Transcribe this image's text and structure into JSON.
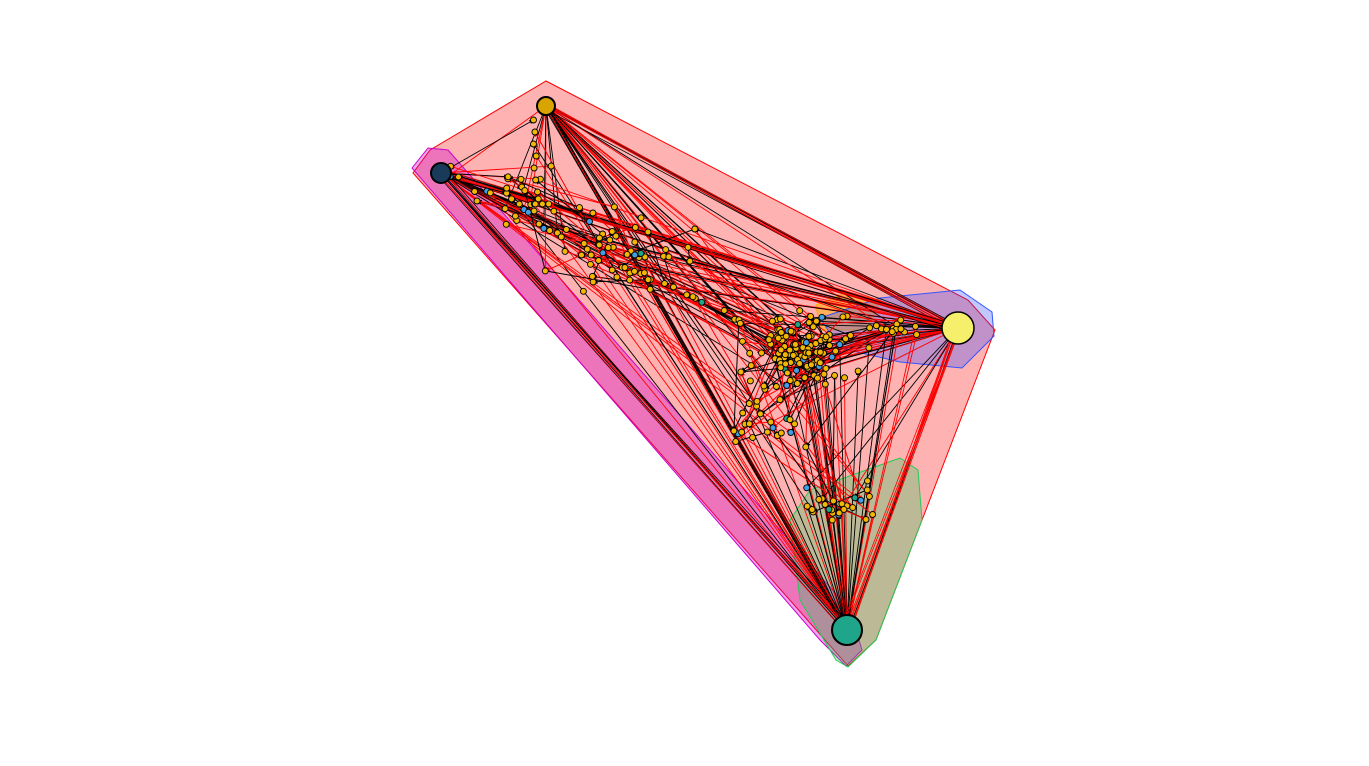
{
  "figure": {
    "kind": "network-graph",
    "background": "#ffffff",
    "edge_colors": {
      "group_a": "#000000",
      "group_b": "#ff0000"
    },
    "node_colors": {
      "primary": "#f2b705",
      "secondary": "#3fa0e6",
      "tertiary": "#1fa58a",
      "hub_yellow": "#f6ef6b",
      "outline": "#000000"
    },
    "hull_colors": {
      "red_region": "#ff0000",
      "magenta_region": "#cc00cc",
      "blue_region": "#3355ff",
      "green_region": "#22cc55",
      "orange_region": "#ff9900"
    },
    "hubs": [
      "top-hub",
      "left-hub",
      "right-hub",
      "bottom-hub"
    ],
    "approx_node_count": 260
  }
}
